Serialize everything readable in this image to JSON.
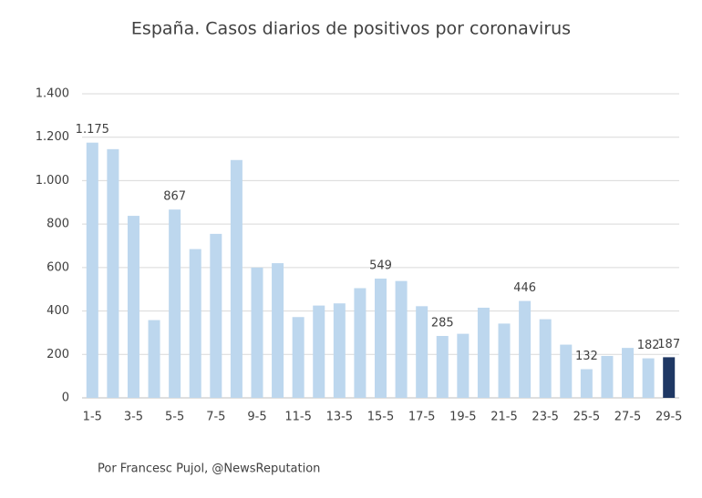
{
  "chart_data": {
    "type": "bar",
    "title": "España. Casos diarios de positivos por coronavirus",
    "categories": [
      "1-5",
      null,
      "3-5",
      null,
      "5-5",
      null,
      "7-5",
      null,
      "9-5",
      null,
      "11-5",
      null,
      "13-5",
      null,
      "15-5",
      null,
      "17-5",
      null,
      "19-5",
      null,
      "21-5",
      null,
      "23-5",
      null,
      "25-5",
      null,
      "27-5",
      null,
      "29-5"
    ],
    "values": [
      1175,
      1145,
      838,
      358,
      867,
      685,
      755,
      1095,
      600,
      620,
      372,
      425,
      435,
      505,
      549,
      538,
      422,
      285,
      295,
      415,
      342,
      446,
      362,
      245,
      132,
      193,
      230,
      182,
      187
    ],
    "value_labels": [
      "1.175",
      null,
      null,
      null,
      "867",
      null,
      null,
      null,
      null,
      null,
      null,
      null,
      null,
      null,
      "549",
      null,
      null,
      "285",
      null,
      null,
      null,
      "446",
      null,
      null,
      "132",
      null,
      null,
      "182",
      "187"
    ],
    "colors": [
      "#bdd7ee",
      "#bdd7ee",
      "#bdd7ee",
      "#bdd7ee",
      "#bdd7ee",
      "#bdd7ee",
      "#bdd7ee",
      "#bdd7ee",
      "#bdd7ee",
      "#bdd7ee",
      "#bdd7ee",
      "#bdd7ee",
      "#bdd7ee",
      "#bdd7ee",
      "#bdd7ee",
      "#bdd7ee",
      "#bdd7ee",
      "#bdd7ee",
      "#bdd7ee",
      "#bdd7ee",
      "#bdd7ee",
      "#bdd7ee",
      "#bdd7ee",
      "#bdd7ee",
      "#bdd7ee",
      "#bdd7ee",
      "#bdd7ee",
      "#bdd7ee",
      "#1f3864"
    ],
    "ylim": [
      0,
      1400
    ],
    "yticks": [
      0,
      200,
      400,
      600,
      800,
      {
        "value": 1000,
        "label": "1.000"
      },
      {
        "value": 1200,
        "label": "1.200"
      },
      {
        "value": 1400,
        "label": "1.400"
      }
    ],
    "grid": true,
    "footer": "Por Francesc Pujol, @NewsReputation"
  }
}
